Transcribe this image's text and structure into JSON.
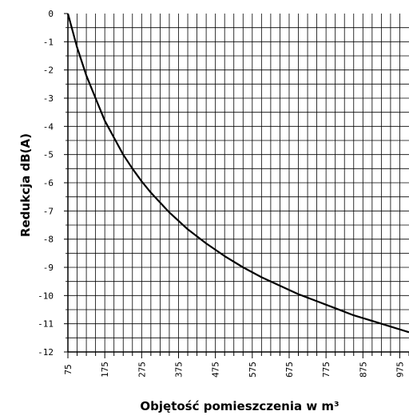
{
  "chart_data": {
    "type": "line",
    "title": "",
    "xlabel": "Objętość pomieszczenia w m³",
    "ylabel": "Redukcja dB(A)",
    "xlim": [
      75,
      1000
    ],
    "ylim": [
      -12,
      0
    ],
    "grid": true,
    "x_ticks": [
      75,
      175,
      275,
      375,
      475,
      575,
      675,
      775,
      875,
      975
    ],
    "y_ticks": [
      0,
      -1,
      -2,
      -3,
      -4,
      -5,
      -6,
      -7,
      -8,
      -9,
      -10,
      -11,
      -12
    ],
    "series": [
      {
        "color": "#000000",
        "x": [
          75,
          100,
          125,
          150,
          175,
          200,
          225,
          250,
          275,
          300,
          350,
          400,
          450,
          500,
          550,
          600,
          650,
          700,
          750,
          800,
          850,
          900,
          950,
          1000
        ],
        "y": [
          0,
          -1.2,
          -2.2,
          -3.0,
          -3.8,
          -4.4,
          -5.0,
          -5.5,
          -5.95,
          -6.35,
          -7.05,
          -7.65,
          -8.15,
          -8.6,
          -9.0,
          -9.35,
          -9.65,
          -9.95,
          -10.2,
          -10.45,
          -10.7,
          -10.9,
          -11.1,
          -11.3
        ]
      }
    ]
  }
}
